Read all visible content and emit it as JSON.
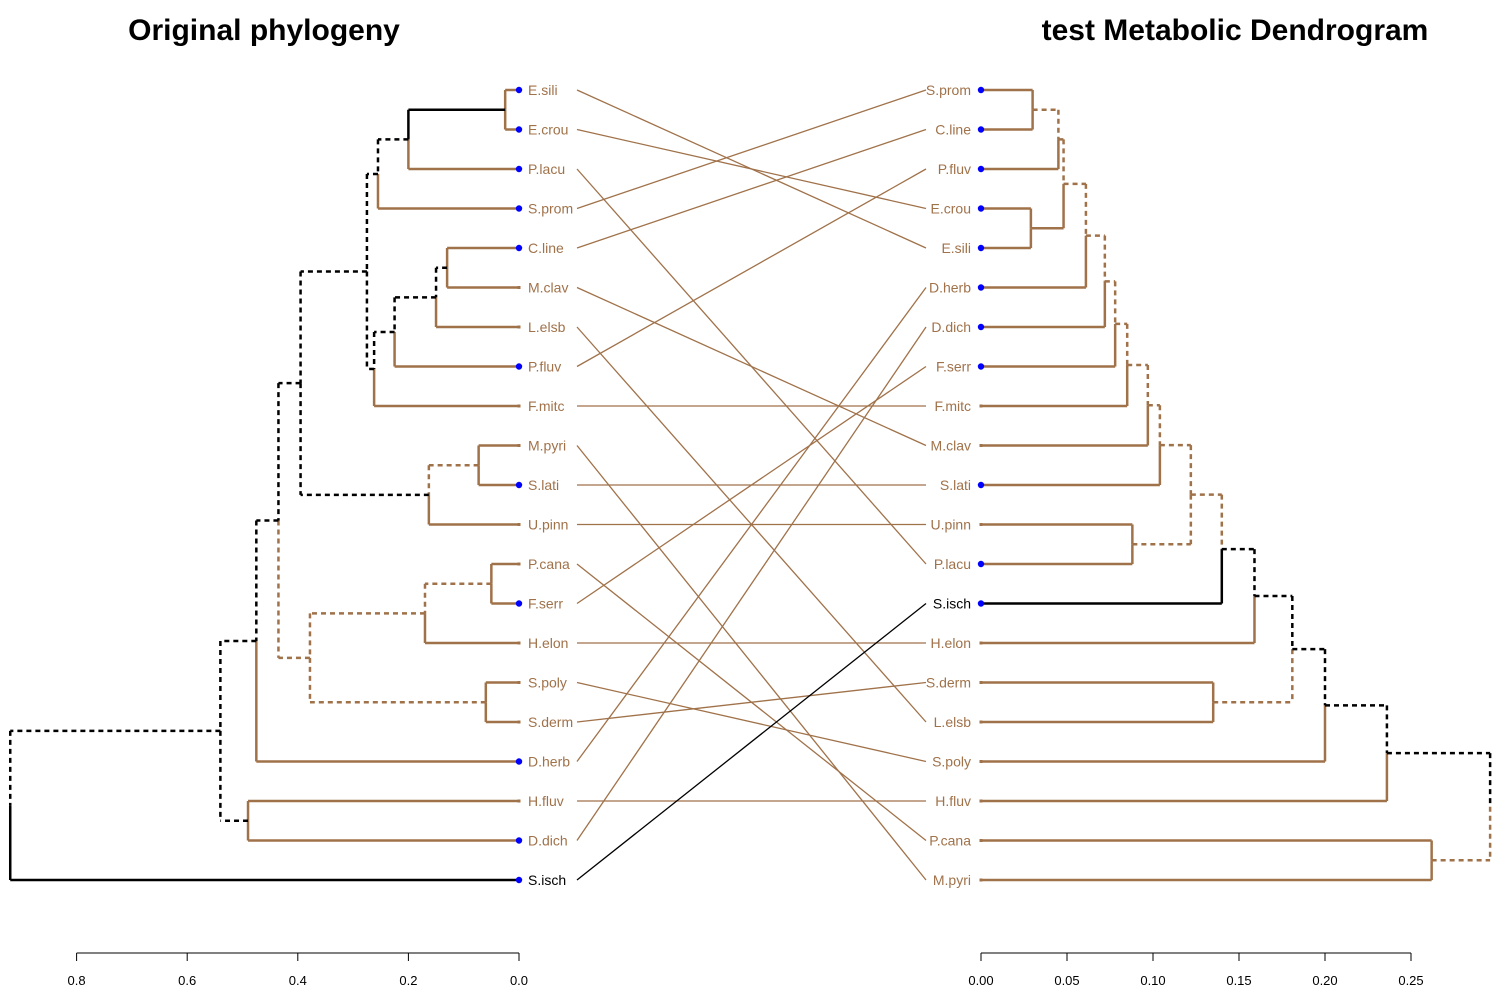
{
  "titles": {
    "left": "Original phylogeny",
    "right": "test Metabolic Dendrogram"
  },
  "colors": {
    "brown": "#a0724a",
    "black": "#000000",
    "tip": "#0000ff"
  },
  "left_tree": {
    "axis": {
      "ticks": [
        0.8,
        0.6,
        0.4,
        0.2,
        0.0
      ],
      "labels": [
        "0.8",
        "0.6",
        "0.4",
        "0.2",
        "0.0"
      ],
      "xlim": [
        0.0,
        0.8
      ]
    },
    "leaves": [
      "E.sili",
      "E.crou",
      "P.lacu",
      "S.prom",
      "C.line",
      "M.clav",
      "L.elsb",
      "P.fluv",
      "F.mitc",
      "M.pyri",
      "S.lati",
      "U.pinn",
      "P.cana",
      "F.serr",
      "H.elon",
      "S.poly",
      "S.derm",
      "D.herb",
      "H.fluv",
      "D.dich",
      "S.isch"
    ],
    "tipDots": [
      "E.sili",
      "E.crou",
      "P.lacu",
      "S.prom",
      "C.line",
      "P.fluv",
      "S.lati",
      "F.serr",
      "D.herb",
      "D.dich",
      "S.isch"
    ],
    "blackLeaves": [
      "S.isch"
    ],
    "merges": [
      {
        "id": "L1",
        "a": "E.sili",
        "b": "E.crou",
        "h": 0.025,
        "sa": "s",
        "sb": "s",
        "ca": "brown",
        "cb": "brown"
      },
      {
        "id": "L2",
        "a": "L1",
        "b": "P.lacu",
        "h": 0.2,
        "sa": "s",
        "sb": "s",
        "ca": "black",
        "cb": "brown"
      },
      {
        "id": "L3",
        "a": "L2",
        "b": "S.prom",
        "h": 0.255,
        "sa": "d",
        "sb": "s",
        "ca": "black",
        "cb": "brown"
      },
      {
        "id": "L4",
        "a": "C.line",
        "b": "M.clav",
        "h": 0.13,
        "sa": "s",
        "sb": "s",
        "ca": "brown",
        "cb": "brown"
      },
      {
        "id": "L5",
        "a": "L4",
        "b": "L.elsb",
        "h": 0.15,
        "sa": "d",
        "sb": "s",
        "ca": "black",
        "cb": "brown"
      },
      {
        "id": "L6",
        "a": "L5",
        "b": "P.fluv",
        "h": 0.225,
        "sa": "d",
        "sb": "s",
        "ca": "black",
        "cb": "brown"
      },
      {
        "id": "L7",
        "a": "L6",
        "b": "F.mitc",
        "h": 0.262,
        "sa": "d",
        "sb": "s",
        "ca": "black",
        "cb": "brown"
      },
      {
        "id": "L8",
        "a": "L3",
        "b": "L7",
        "h": 0.275,
        "sa": "d",
        "sb": "d",
        "ca": "black",
        "cb": "black"
      },
      {
        "id": "L9",
        "a": "M.pyri",
        "b": "S.lati",
        "h": 0.073,
        "sa": "s",
        "sb": "s",
        "ca": "brown",
        "cb": "brown"
      },
      {
        "id": "L10",
        "a": "L9",
        "b": "U.pinn",
        "h": 0.163,
        "sa": "d",
        "sb": "s",
        "ca": "brown",
        "cb": "brown"
      },
      {
        "id": "L11",
        "a": "L8",
        "b": "L10",
        "h": 0.395,
        "sa": "d",
        "sb": "d",
        "ca": "black",
        "cb": "black"
      },
      {
        "id": "L12",
        "a": "P.cana",
        "b": "F.serr",
        "h": 0.05,
        "sa": "s",
        "sb": "s",
        "ca": "brown",
        "cb": "brown"
      },
      {
        "id": "L13",
        "a": "L12",
        "b": "H.elon",
        "h": 0.17,
        "sa": "d",
        "sb": "s",
        "ca": "brown",
        "cb": "brown"
      },
      {
        "id": "L14",
        "a": "S.poly",
        "b": "S.derm",
        "h": 0.06,
        "sa": "s",
        "sb": "s",
        "ca": "brown",
        "cb": "brown"
      },
      {
        "id": "L15",
        "a": "L13",
        "b": "L14",
        "h": 0.378,
        "sa": "d",
        "sb": "d",
        "ca": "brown",
        "cb": "brown"
      },
      {
        "id": "L16",
        "a": "L11",
        "b": "L15",
        "h": 0.435,
        "sa": "d",
        "sb": "d",
        "ca": "black",
        "cb": "brown"
      },
      {
        "id": "L17",
        "a": "L16",
        "b": "D.herb",
        "h": 0.475,
        "sa": "d",
        "sb": "s",
        "ca": "black",
        "cb": "brown"
      },
      {
        "id": "L18",
        "a": "H.fluv",
        "b": "D.dich",
        "h": 0.49,
        "sa": "s",
        "sb": "s",
        "ca": "brown",
        "cb": "brown"
      },
      {
        "id": "L19",
        "a": "L17",
        "b": "L18",
        "h": 0.54,
        "sa": "d",
        "sb": "d",
        "ca": "black",
        "cb": "black"
      },
      {
        "id": "L20",
        "a": "L19",
        "b": "S.isch",
        "h": 0.92,
        "sa": "d",
        "sb": "s",
        "ca": "black",
        "cb": "black"
      }
    ]
  },
  "right_tree": {
    "axis": {
      "ticks": [
        0.0,
        0.05,
        0.1,
        0.15,
        0.2,
        0.25
      ],
      "labels": [
        "0.00",
        "0.05",
        "0.10",
        "0.15",
        "0.20",
        "0.25"
      ],
      "xlim": [
        0.0,
        0.25
      ]
    },
    "leaves": [
      "S.prom",
      "C.line",
      "P.fluv",
      "E.crou",
      "E.sili",
      "D.herb",
      "D.dich",
      "F.serr",
      "F.mitc",
      "M.clav",
      "S.lati",
      "U.pinn",
      "P.lacu",
      "S.isch",
      "H.elon",
      "S.derm",
      "L.elsb",
      "S.poly",
      "H.fluv",
      "P.cana",
      "M.pyri"
    ],
    "tipDots": [
      "S.prom",
      "C.line",
      "P.fluv",
      "E.crou",
      "E.sili",
      "D.herb",
      "D.dich",
      "F.serr",
      "S.lati",
      "P.lacu",
      "S.isch"
    ],
    "blackLeaves": [
      "S.isch"
    ],
    "merges": [
      {
        "id": "R1",
        "a": "S.prom",
        "b": "C.line",
        "h": 0.03,
        "sa": "s",
        "sb": "s",
        "ca": "brown",
        "cb": "brown"
      },
      {
        "id": "R2",
        "a": "R1",
        "b": "P.fluv",
        "h": 0.045,
        "sa": "d",
        "sb": "s",
        "ca": "brown",
        "cb": "brown"
      },
      {
        "id": "R3",
        "a": "E.crou",
        "b": "E.sili",
        "h": 0.029,
        "sa": "s",
        "sb": "s",
        "ca": "brown",
        "cb": "brown"
      },
      {
        "id": "R4",
        "a": "R2",
        "b": "R3",
        "h": 0.048,
        "sa": "d",
        "sb": "s",
        "ca": "brown",
        "cb": "brown"
      },
      {
        "id": "R5",
        "a": "R4",
        "b": "D.herb",
        "h": 0.061,
        "sa": "d",
        "sb": "s",
        "ca": "brown",
        "cb": "brown"
      },
      {
        "id": "R6",
        "a": "R5",
        "b": "D.dich",
        "h": 0.072,
        "sa": "d",
        "sb": "s",
        "ca": "brown",
        "cb": "brown"
      },
      {
        "id": "R7",
        "a": "R6",
        "b": "F.serr",
        "h": 0.078,
        "sa": "d",
        "sb": "s",
        "ca": "brown",
        "cb": "brown"
      },
      {
        "id": "R8",
        "a": "R7",
        "b": "F.mitc",
        "h": 0.085,
        "sa": "d",
        "sb": "s",
        "ca": "brown",
        "cb": "brown"
      },
      {
        "id": "R9",
        "a": "R8",
        "b": "M.clav",
        "h": 0.097,
        "sa": "d",
        "sb": "s",
        "ca": "brown",
        "cb": "brown"
      },
      {
        "id": "R10",
        "a": "R9",
        "b": "S.lati",
        "h": 0.104,
        "sa": "d",
        "sb": "s",
        "ca": "brown",
        "cb": "brown"
      },
      {
        "id": "R11",
        "a": "U.pinn",
        "b": "P.lacu",
        "h": 0.088,
        "sa": "s",
        "sb": "s",
        "ca": "brown",
        "cb": "brown"
      },
      {
        "id": "R12",
        "a": "R10",
        "b": "R11",
        "h": 0.122,
        "sa": "d",
        "sb": "d",
        "ca": "brown",
        "cb": "brown"
      },
      {
        "id": "R13",
        "a": "R12",
        "b": "S.isch",
        "h": 0.14,
        "sa": "d",
        "sb": "s",
        "ca": "brown",
        "cb": "black"
      },
      {
        "id": "R14",
        "a": "R13",
        "b": "H.elon",
        "h": 0.159,
        "sa": "d",
        "sb": "s",
        "ca": "black",
        "cb": "brown"
      },
      {
        "id": "R15",
        "a": "S.derm",
        "b": "L.elsb",
        "h": 0.135,
        "sa": "s",
        "sb": "s",
        "ca": "brown",
        "cb": "brown"
      },
      {
        "id": "R16",
        "a": "R14",
        "b": "R15",
        "h": 0.181,
        "sa": "d",
        "sb": "d",
        "ca": "black",
        "cb": "brown"
      },
      {
        "id": "R17",
        "a": "R16",
        "b": "S.poly",
        "h": 0.2,
        "sa": "d",
        "sb": "s",
        "ca": "black",
        "cb": "brown"
      },
      {
        "id": "R18",
        "a": "R17",
        "b": "H.fluv",
        "h": 0.236,
        "sa": "d",
        "sb": "s",
        "ca": "black",
        "cb": "brown"
      },
      {
        "id": "R19",
        "a": "P.cana",
        "b": "M.pyri",
        "h": 0.262,
        "sa": "s",
        "sb": "s",
        "ca": "brown",
        "cb": "brown"
      },
      {
        "id": "R20",
        "a": "R18",
        "b": "R19",
        "h": 0.296,
        "sa": "d",
        "sb": "d",
        "ca": "black",
        "cb": "brown"
      }
    ]
  },
  "connectors": [
    {
      "from": "E.sili",
      "to": "E.sili",
      "color": "brown"
    },
    {
      "from": "E.crou",
      "to": "E.crou",
      "color": "brown"
    },
    {
      "from": "P.lacu",
      "to": "P.lacu",
      "color": "brown"
    },
    {
      "from": "S.prom",
      "to": "S.prom",
      "color": "brown"
    },
    {
      "from": "C.line",
      "to": "C.line",
      "color": "brown"
    },
    {
      "from": "M.clav",
      "to": "M.clav",
      "color": "brown"
    },
    {
      "from": "L.elsb",
      "to": "L.elsb",
      "color": "brown"
    },
    {
      "from": "P.fluv",
      "to": "P.fluv",
      "color": "brown"
    },
    {
      "from": "F.mitc",
      "to": "F.mitc",
      "color": "brown"
    },
    {
      "from": "M.pyri",
      "to": "M.pyri",
      "color": "brown"
    },
    {
      "from": "S.lati",
      "to": "S.lati",
      "color": "brown"
    },
    {
      "from": "U.pinn",
      "to": "U.pinn",
      "color": "brown"
    },
    {
      "from": "P.cana",
      "to": "P.cana",
      "color": "brown"
    },
    {
      "from": "F.serr",
      "to": "F.serr",
      "color": "brown"
    },
    {
      "from": "H.elon",
      "to": "H.elon",
      "color": "brown"
    },
    {
      "from": "S.poly",
      "to": "S.poly",
      "color": "brown"
    },
    {
      "from": "S.derm",
      "to": "S.derm",
      "color": "brown"
    },
    {
      "from": "D.herb",
      "to": "D.herb",
      "color": "brown"
    },
    {
      "from": "H.fluv",
      "to": "H.fluv",
      "color": "brown"
    },
    {
      "from": "D.dich",
      "to": "D.dich",
      "color": "brown"
    },
    {
      "from": "S.isch",
      "to": "S.isch",
      "color": "black"
    }
  ]
}
